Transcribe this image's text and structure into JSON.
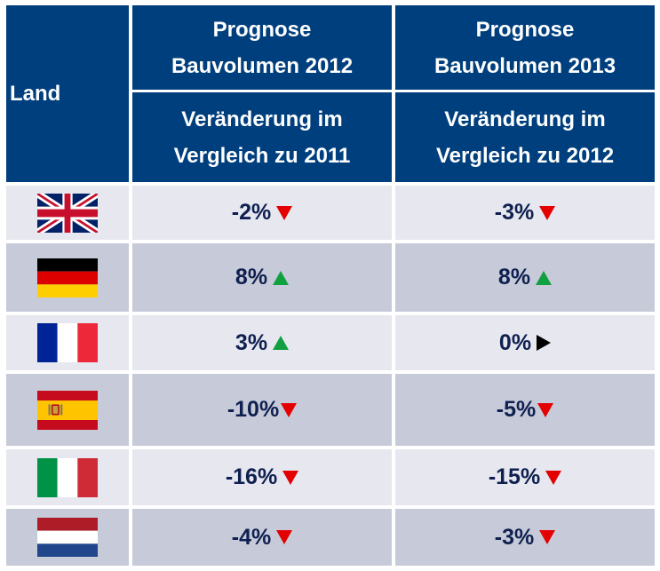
{
  "header": {
    "land": "Land",
    "col1_title_line1": "Prognose",
    "col1_title_line2": "Bauvolumen  2012",
    "col1_sub_line1": "Veränderung im",
    "col1_sub_line2": "Vergleich zu  2011",
    "col2_title_line1": "Prognose",
    "col2_title_line2": "Bauvolumen  2013",
    "col2_sub_line1": "Veränderung im",
    "col2_sub_line2": "Vergleich zu  2012"
  },
  "colors": {
    "header_bg": "#003f7d",
    "row_light": "#e6e7ef",
    "row_dark": "#c7cad8",
    "up": "#10a040",
    "down": "#e30000",
    "flat": "#000000"
  },
  "rows": [
    {
      "country_flag": "uk-flag-icon",
      "v2012": "-2%",
      "t2012": "down",
      "v2013": "-3%",
      "t2013": "down"
    },
    {
      "country_flag": "germany-flag-icon",
      "v2012": "8%",
      "t2012": "up",
      "v2013": "8%",
      "t2013": "up"
    },
    {
      "country_flag": "france-flag-icon",
      "v2012": "3%",
      "t2012": "up",
      "v2013": "0%",
      "t2013": "flat"
    },
    {
      "country_flag": "spain-flag-icon",
      "v2012": "-10%",
      "t2012": "down",
      "v2013": "-5%",
      "t2013": "down"
    },
    {
      "country_flag": "italy-flag-icon",
      "v2012": "-16%",
      "t2012": "down",
      "v2013": "-15%",
      "t2013": "down"
    },
    {
      "country_flag": "netherlands-flag-icon",
      "v2012": "-4%",
      "t2012": "down",
      "v2013": "-3%",
      "t2013": "down"
    }
  ]
}
